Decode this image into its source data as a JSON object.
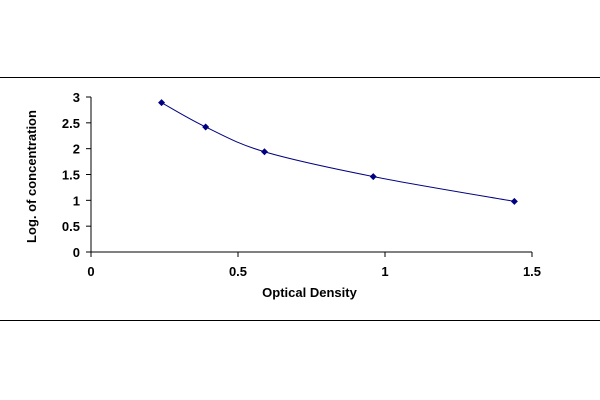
{
  "chart_data": {
    "type": "line",
    "title": "",
    "xlabel": "Optical Density",
    "ylabel": "Log. of concentration",
    "xlim": [
      0,
      1.5
    ],
    "ylim": [
      0,
      3
    ],
    "xticks": [
      "0",
      "0.5",
      "1",
      "1.5"
    ],
    "yticks": [
      "0",
      "0.5",
      "1",
      "1.5",
      "2",
      "2.5",
      "3"
    ],
    "grid": false,
    "legend": "none",
    "series": [
      {
        "x": [
          0.24,
          0.39,
          0.59,
          0.96,
          1.44
        ],
        "y": [
          2.89,
          2.42,
          1.94,
          1.46,
          0.98
        ],
        "color": "#000080",
        "marker": "diamond",
        "smooth": true
      }
    ]
  }
}
